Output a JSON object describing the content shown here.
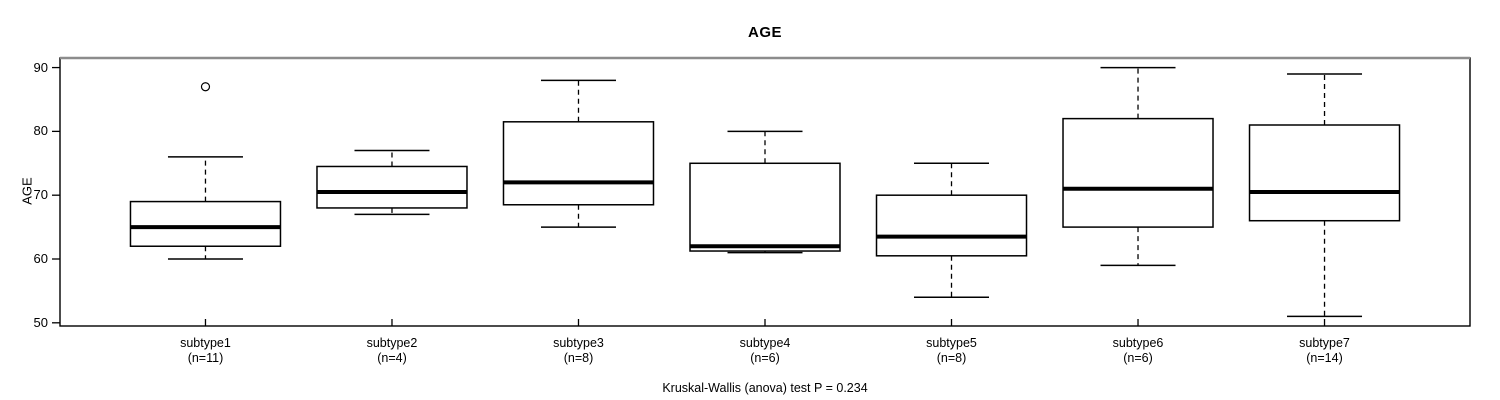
{
  "chart_data": {
    "type": "boxplot",
    "title": "AGE",
    "xlabel": "",
    "ylabel": "AGE",
    "footnote": "Kruskal-Wallis (anova) test P = 0.234",
    "ylim": [
      49.5,
      91.5
    ],
    "yticks": [
      50,
      60,
      70,
      80,
      90
    ],
    "grid": false,
    "orientation": "vertical",
    "groups": [
      {
        "label": "subtype1",
        "sublabel": "(n=11)",
        "n": 11,
        "whisker_low": 60,
        "q1": 62,
        "median": 65,
        "q3": 69,
        "whisker_high": 76,
        "outliers": [
          87
        ]
      },
      {
        "label": "subtype2",
        "sublabel": "(n=4)",
        "n": 4,
        "whisker_low": 67,
        "q1": 68,
        "median": 70.5,
        "q3": 74.5,
        "whisker_high": 77,
        "outliers": []
      },
      {
        "label": "subtype3",
        "sublabel": "(n=8)",
        "n": 8,
        "whisker_low": 65,
        "q1": 68.5,
        "median": 72,
        "q3": 81.5,
        "whisker_high": 88,
        "outliers": []
      },
      {
        "label": "subtype4",
        "sublabel": "(n=6)",
        "n": 6,
        "whisker_low": 61,
        "q1": 61.25,
        "median": 62,
        "q3": 75,
        "whisker_high": 80,
        "outliers": []
      },
      {
        "label": "subtype5",
        "sublabel": "(n=8)",
        "n": 8,
        "whisker_low": 54,
        "q1": 60.5,
        "median": 63.5,
        "q3": 70,
        "whisker_high": 75,
        "outliers": []
      },
      {
        "label": "subtype6",
        "sublabel": "(n=6)",
        "n": 6,
        "whisker_low": 59,
        "q1": 65,
        "median": 71,
        "q3": 82,
        "whisker_high": 90,
        "outliers": []
      },
      {
        "label": "subtype7",
        "sublabel": "(n=14)",
        "n": 14,
        "whisker_low": 51,
        "q1": 66,
        "median": 70.5,
        "q3": 81,
        "whisker_high": 89,
        "outliers": []
      }
    ],
    "colors": {
      "line": "#000000",
      "box_fill": "#ffffff",
      "frame_top": "#8c8c8c",
      "background": "#ffffff"
    }
  }
}
